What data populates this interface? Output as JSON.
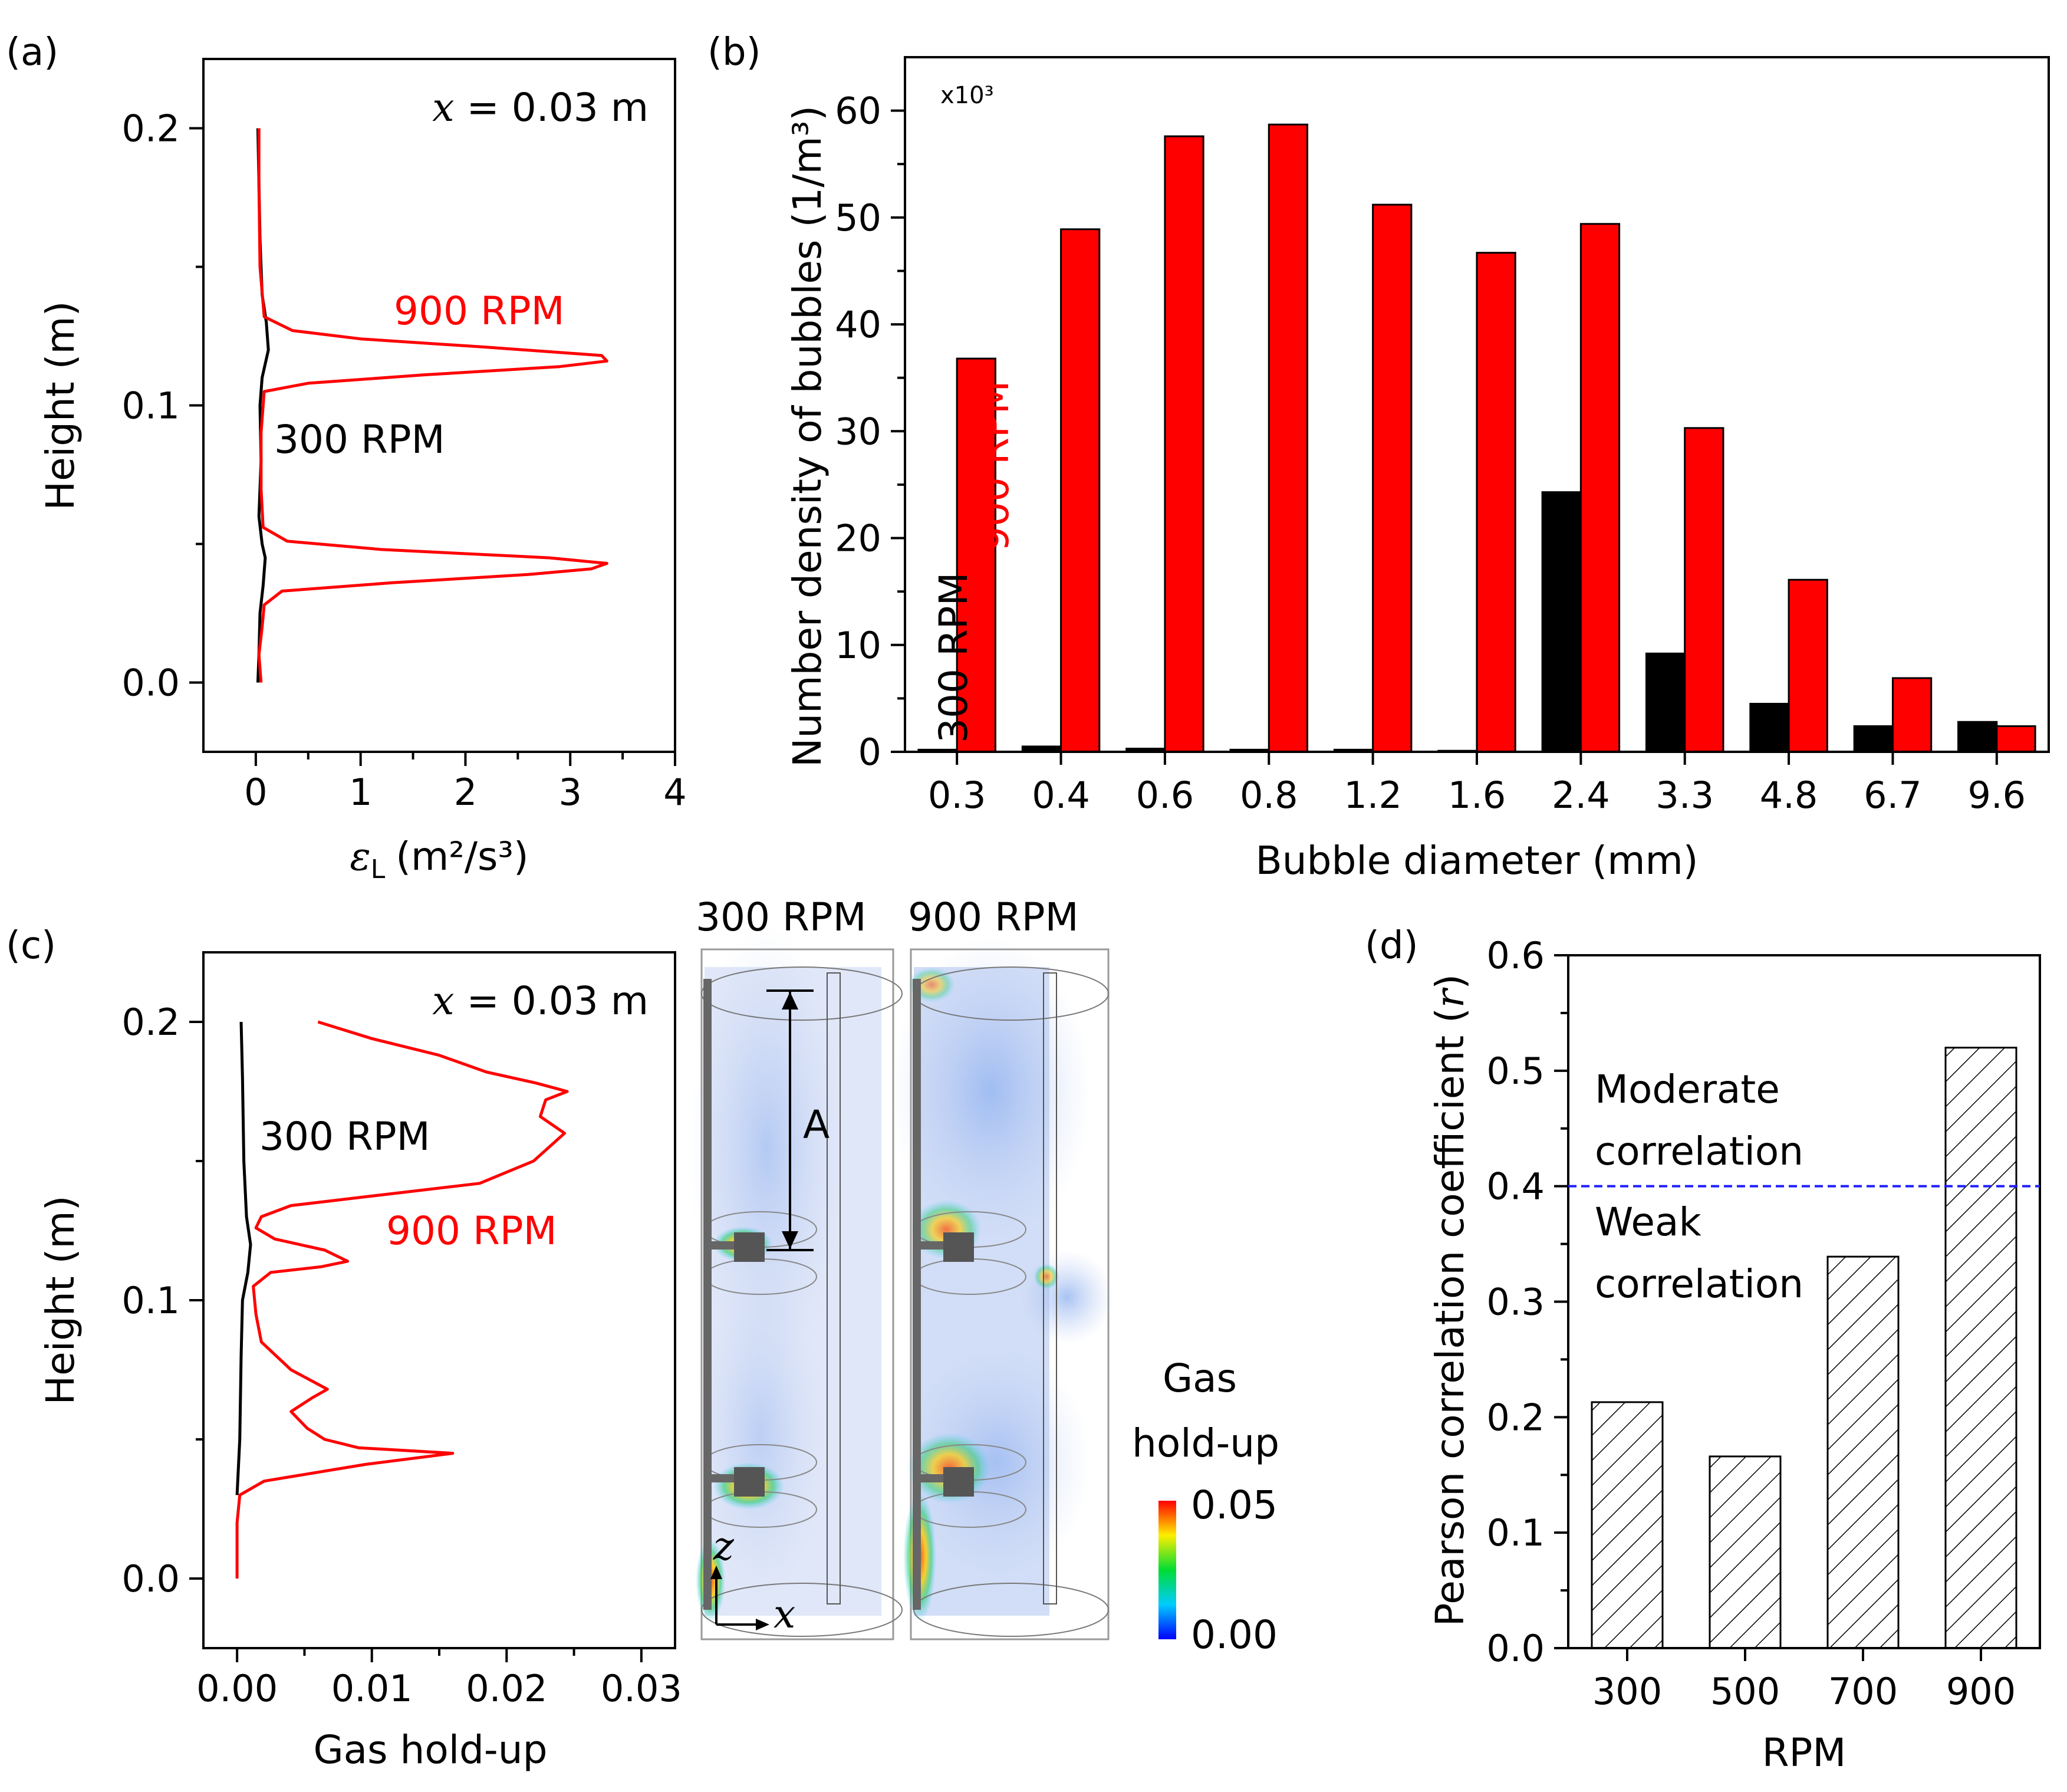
{
  "colors": {
    "red": "#ff0000",
    "black": "#000000",
    "blue": "#1f1fff"
  },
  "chart_data": [
    {
      "id": "a",
      "type": "line",
      "panel_label": "(a)",
      "xlabel_sym": "ε",
      "xlabel_sub": "L",
      "xlabel_rest": "(m²/s³)",
      "ylabel": "Height (m)",
      "xlim": [
        -0.5,
        4
      ],
      "ylim": [
        -0.025,
        0.225
      ],
      "xticks": [
        0,
        1,
        2,
        3,
        4
      ],
      "xtick_labels": [
        "0",
        "1",
        "2",
        "3",
        "4"
      ],
      "yticks": [
        0.0,
        0.1,
        0.2
      ],
      "ytick_labels": [
        "0.0",
        "0.1",
        "0.2"
      ],
      "annotation_var": "x",
      "annotation_rest": " = 0.03 m",
      "series": [
        {
          "name": "300 RPM",
          "label": "300 RPM",
          "color": "#000000",
          "points": [
            [
              0.02,
              0.0
            ],
            [
              0.03,
              0.01
            ],
            [
              0.04,
              0.025
            ],
            [
              0.07,
              0.035
            ],
            [
              0.09,
              0.045
            ],
            [
              0.06,
              0.05
            ],
            [
              0.03,
              0.06
            ],
            [
              0.05,
              0.08
            ],
            [
              0.04,
              0.1
            ],
            [
              0.06,
              0.11
            ],
            [
              0.12,
              0.12
            ],
            [
              0.1,
              0.13
            ],
            [
              0.06,
              0.14
            ],
            [
              0.04,
              0.16
            ],
            [
              0.03,
              0.18
            ],
            [
              0.02,
              0.2
            ]
          ]
        },
        {
          "name": "900 RPM",
          "label": "900 RPM",
          "color": "#ff0000",
          "points": [
            [
              0.05,
              0.0
            ],
            [
              0.03,
              0.01
            ],
            [
              0.06,
              0.02
            ],
            [
              0.08,
              0.028
            ],
            [
              0.25,
              0.033
            ],
            [
              1.3,
              0.036
            ],
            [
              2.6,
              0.039
            ],
            [
              3.2,
              0.041
            ],
            [
              3.35,
              0.043
            ],
            [
              2.8,
              0.045
            ],
            [
              1.2,
              0.048
            ],
            [
              0.3,
              0.051
            ],
            [
              0.07,
              0.056
            ],
            [
              0.05,
              0.07
            ],
            [
              0.05,
              0.09
            ],
            [
              0.08,
              0.105
            ],
            [
              0.5,
              0.108
            ],
            [
              1.6,
              0.111
            ],
            [
              2.9,
              0.114
            ],
            [
              3.35,
              0.116
            ],
            [
              3.3,
              0.118
            ],
            [
              2.2,
              0.121
            ],
            [
              1.0,
              0.124
            ],
            [
              0.35,
              0.127
            ],
            [
              0.08,
              0.132
            ],
            [
              0.04,
              0.15
            ],
            [
              0.03,
              0.18
            ],
            [
              0.03,
              0.2
            ]
          ]
        }
      ]
    },
    {
      "id": "b",
      "type": "bar",
      "panel_label": "(b)",
      "title": "",
      "xlabel": "Bubble diameter (mm)",
      "ylabel": "Number density of bubbles (1/m³)",
      "multiplier": "x10³",
      "ylim": [
        0,
        65
      ],
      "yticks": [
        0,
        10,
        20,
        30,
        40,
        50,
        60
      ],
      "ytick_labels": [
        "0",
        "10",
        "20",
        "30",
        "40",
        "50",
        "60"
      ],
      "categories": [
        "0.3",
        "0.4",
        "0.6",
        "0.8",
        "1.2",
        "1.6",
        "2.4",
        "3.3",
        "4.8",
        "6.7",
        "9.6"
      ],
      "series": [
        {
          "name": "300 RPM",
          "label": "300 RPM",
          "color": "#000000",
          "values": [
            0.2,
            0.5,
            0.3,
            0.2,
            0.2,
            0.1,
            24.3,
            9.2,
            4.5,
            2.4,
            2.8
          ]
        },
        {
          "name": "900 RPM",
          "label": "900 RPM",
          "color": "#ff0000",
          "values": [
            36.8,
            48.9,
            57.6,
            58.7,
            51.2,
            46.7,
            49.4,
            30.3,
            16.1,
            6.9,
            2.4
          ]
        }
      ]
    },
    {
      "id": "c",
      "type": "line",
      "panel_label": "(c)",
      "xlabel": "Gas hold-up",
      "ylabel": "Height (m)",
      "xlim": [
        -0.0025,
        0.0325
      ],
      "ylim": [
        -0.025,
        0.225
      ],
      "xticks": [
        0.0,
        0.01,
        0.02,
        0.03
      ],
      "xtick_labels": [
        "0.00",
        "0.01",
        "0.02",
        "0.03"
      ],
      "yticks": [
        0.0,
        0.1,
        0.2
      ],
      "ytick_labels": [
        "0.0",
        "0.1",
        "0.2"
      ],
      "annotation_var": "x",
      "annotation_rest": " = 0.03 m",
      "series": [
        {
          "name": "300 RPM",
          "label": "300 RPM",
          "color": "#000000",
          "points": [
            [
              0.0,
              0.03
            ],
            [
              0.0002,
              0.05
            ],
            [
              0.0003,
              0.08
            ],
            [
              0.0004,
              0.1
            ],
            [
              0.0008,
              0.11
            ],
            [
              0.001,
              0.12
            ],
            [
              0.0007,
              0.13
            ],
            [
              0.0005,
              0.15
            ],
            [
              0.0004,
              0.18
            ],
            [
              0.0003,
              0.2
            ]
          ]
        },
        {
          "name": "900 RPM",
          "label": "900 RPM",
          "color": "#ff0000",
          "points": [
            [
              0.0,
              0.0
            ],
            [
              0.0,
              0.02
            ],
            [
              0.0002,
              0.03
            ],
            [
              0.002,
              0.035
            ],
            [
              0.0095,
              0.041
            ],
            [
              0.016,
              0.045
            ],
            [
              0.009,
              0.047
            ],
            [
              0.0065,
              0.05
            ],
            [
              0.0052,
              0.054
            ],
            [
              0.004,
              0.06
            ],
            [
              0.0056,
              0.065
            ],
            [
              0.0067,
              0.068
            ],
            [
              0.004,
              0.075
            ],
            [
              0.0018,
              0.085
            ],
            [
              0.0014,
              0.095
            ],
            [
              0.0012,
              0.105
            ],
            [
              0.0025,
              0.11
            ],
            [
              0.0062,
              0.112
            ],
            [
              0.0082,
              0.114
            ],
            [
              0.0065,
              0.118
            ],
            [
              0.0028,
              0.122
            ],
            [
              0.0014,
              0.126
            ],
            [
              0.0018,
              0.13
            ],
            [
              0.004,
              0.134
            ],
            [
              0.011,
              0.138
            ],
            [
              0.018,
              0.142
            ],
            [
              0.022,
              0.15
            ],
            [
              0.0243,
              0.16
            ],
            [
              0.0225,
              0.166
            ],
            [
              0.0229,
              0.172
            ],
            [
              0.0245,
              0.175
            ],
            [
              0.0222,
              0.178
            ],
            [
              0.0185,
              0.182
            ],
            [
              0.015,
              0.188
            ],
            [
              0.01,
              0.194
            ],
            [
              0.006,
              0.2
            ]
          ]
        }
      ]
    },
    {
      "id": "d",
      "type": "bar",
      "panel_label": "(d)",
      "xlabel": "RPM",
      "ylabel": "Pearson correlation coefficient",
      "ylabel_sym": "r",
      "ylim": [
        0,
        0.6
      ],
      "yticks": [
        0.0,
        0.1,
        0.2,
        0.3,
        0.4,
        0.5,
        0.6
      ],
      "ytick_labels": [
        "0.0",
        "0.1",
        "0.2",
        "0.3",
        "0.4",
        "0.5",
        "0.6"
      ],
      "categories": [
        "300",
        "500",
        "700",
        "900"
      ],
      "values": [
        0.213,
        0.166,
        0.339,
        0.52
      ],
      "threshold": 0.4,
      "annotations": {
        "upper_1": "Moderate",
        "upper_2": "correlation",
        "lower_1": "Weak",
        "lower_2": "correlation"
      }
    }
  ],
  "contour": {
    "panel_left_title": "300 RPM",
    "panel_right_title": "900 RPM",
    "arrow_label": "A",
    "axis_z": "z",
    "axis_x": "x",
    "colorbar_title_1": "Gas",
    "colorbar_title_2": "hold-up",
    "colorbar_max": "0.05",
    "colorbar_min": "0.00"
  }
}
